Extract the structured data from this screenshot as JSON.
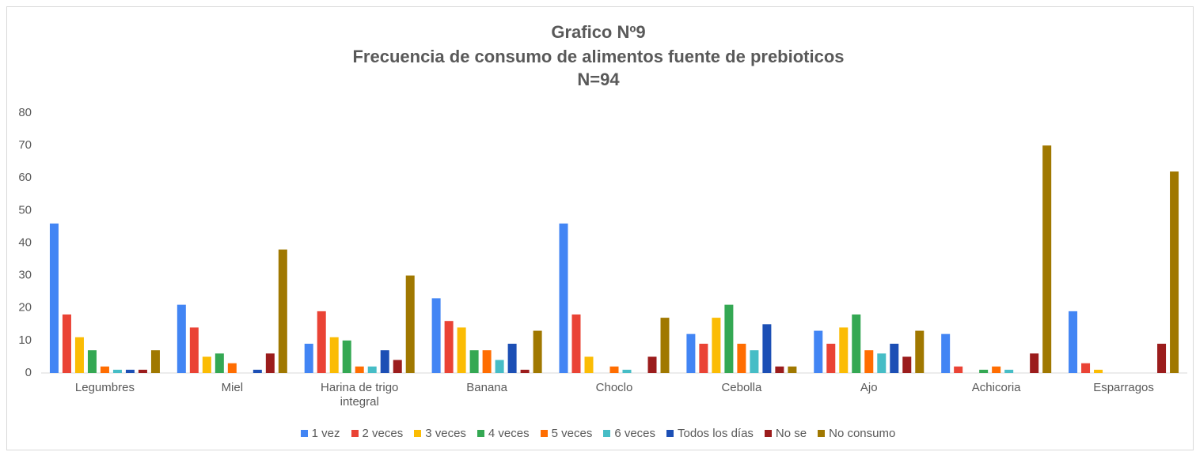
{
  "chart_data": {
    "type": "bar",
    "title": "Grafico Nº9",
    "subtitle": "Frecuencia de consumo de alimentos fuente de prebioticos",
    "note": "N=94",
    "categories": [
      "Legumbres",
      "Miel",
      "Harina de trigo integral",
      "Banana",
      "Choclo",
      "Cebolla",
      "Ajo",
      "Achicoria",
      "Esparragos"
    ],
    "series": [
      {
        "name": "1 vez",
        "color": "#4285f4",
        "values": [
          46,
          21,
          9,
          23,
          46,
          12,
          13,
          12,
          19
        ]
      },
      {
        "name": "2 veces",
        "color": "#ea4335",
        "values": [
          18,
          14,
          19,
          16,
          18,
          9,
          9,
          2,
          3
        ]
      },
      {
        "name": "3 veces",
        "color": "#fbbc04",
        "values": [
          11,
          5,
          11,
          14,
          5,
          17,
          14,
          0,
          1
        ]
      },
      {
        "name": "4 veces",
        "color": "#34a853",
        "values": [
          7,
          6,
          10,
          7,
          0,
          21,
          18,
          1,
          0
        ]
      },
      {
        "name": "5 veces",
        "color": "#ff6d01",
        "values": [
          2,
          3,
          2,
          7,
          2,
          9,
          7,
          2,
          0
        ]
      },
      {
        "name": "6 veces",
        "color": "#46bdc6",
        "values": [
          1,
          0,
          2,
          4,
          1,
          7,
          6,
          1,
          0
        ]
      },
      {
        "name": "Todos los días",
        "color": "#1c4fb5",
        "values": [
          1,
          1,
          7,
          9,
          0,
          15,
          9,
          0,
          0
        ]
      },
      {
        "name": "No se",
        "color": "#9b1c1c",
        "values": [
          1,
          6,
          4,
          1,
          5,
          2,
          5,
          6,
          9
        ]
      },
      {
        "name": "No consumo",
        "color": "#a07800",
        "values": [
          7,
          38,
          30,
          13,
          17,
          2,
          13,
          70,
          62
        ]
      }
    ],
    "ylim": [
      0,
      80
    ],
    "yticks": [
      0,
      10,
      20,
      30,
      40,
      50,
      60,
      70,
      80
    ],
    "grid": false
  }
}
